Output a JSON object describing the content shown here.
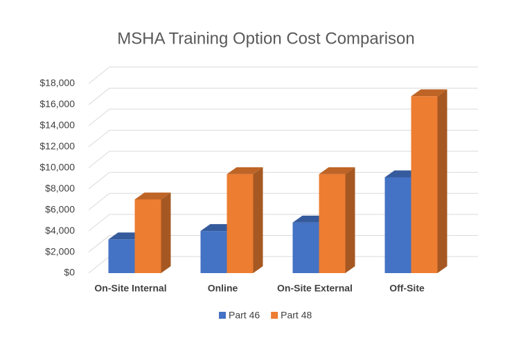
{
  "chart_data": {
    "type": "bar3d",
    "title": "MSHA Training Option Cost Comparison",
    "categories": [
      "On-Site Internal",
      "Online",
      "On-Site External",
      "Off-Site"
    ],
    "series": [
      {
        "name": "Part 46",
        "color": "#4472c4",
        "values": [
          3200,
          4000,
          4800,
          9100
        ]
      },
      {
        "name": "Part 48",
        "color": "#ed7d31",
        "values": [
          7000,
          9400,
          9400,
          16800
        ]
      }
    ],
    "ylim": [
      0,
      18000
    ],
    "yticks": [
      {
        "value": 0,
        "label": "$0"
      },
      {
        "value": 2000,
        "label": "$2,000"
      },
      {
        "value": 4000,
        "label": "$4,000"
      },
      {
        "value": 6000,
        "label": "$6,000"
      },
      {
        "value": 8000,
        "label": "$8,000"
      },
      {
        "value": 10000,
        "label": "$10,000"
      },
      {
        "value": 12000,
        "label": "$12,000"
      },
      {
        "value": 14000,
        "label": "$14,000"
      },
      {
        "value": 16000,
        "label": "$16,000"
      },
      {
        "value": 18000,
        "label": "$18,000"
      }
    ],
    "grid": true
  }
}
